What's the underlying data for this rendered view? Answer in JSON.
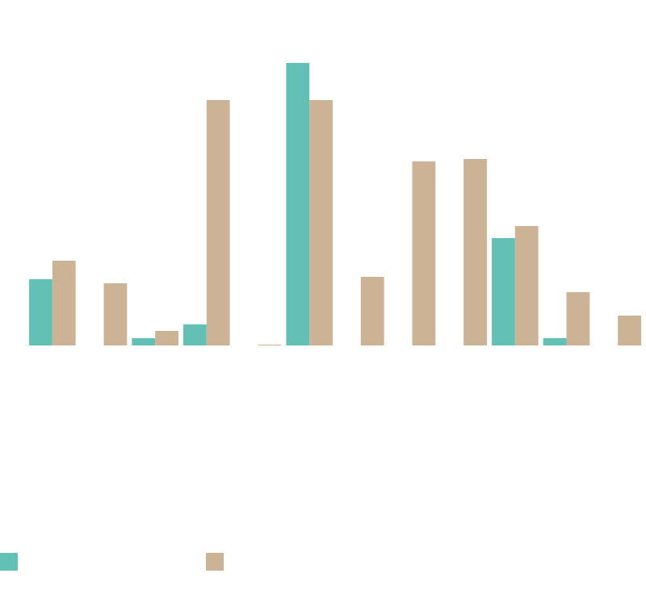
{
  "chart_data": {
    "type": "bar",
    "categories": [
      null,
      null,
      null,
      null,
      null,
      null,
      null,
      null,
      null,
      null,
      null,
      null
    ],
    "series": [
      {
        "color": "#63c0b5",
        "values": [
          82,
          0,
          9,
          26,
          0,
          350,
          0,
          0,
          0,
          133,
          9,
          0
        ]
      },
      {
        "color": "#cdb396",
        "values": [
          105,
          77,
          18,
          304,
          1,
          304,
          85,
          228,
          231,
          148,
          66,
          37
        ]
      }
    ],
    "ylim": [
      0,
      400
    ],
    "legend": "bottom-left"
  }
}
